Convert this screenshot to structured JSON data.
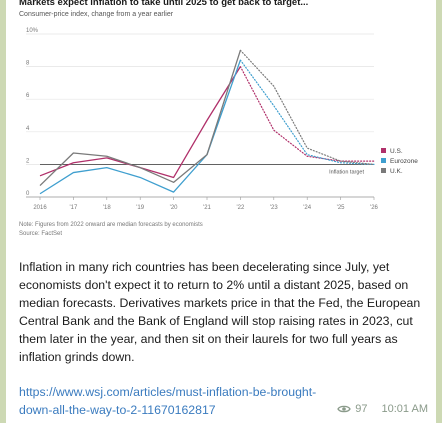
{
  "message": {
    "body": "Inflation in many rich countries has been decelerating since July, yet economists don't expect it to return to 2% until a distant 2025, based on median forecasts. Derivatives markets price in that the Fed, the European Central Bank and the Bank of England will stop raising rates in 2023, cut them later in the year, and then sit on their laurels for two full years as inflation grinds down.",
    "link": "https://www.wsj.com/articles/must-inflation-be-brought-down-all-the-way-to-2-11670162817",
    "views": "97",
    "time": "10:01 AM"
  },
  "chart_data": {
    "type": "line",
    "title": "Markets expect inflation to take until 2025 to get back to target...",
    "subtitle": "Consumer-price index, change from a year earlier",
    "note": "Note: Figures from 2022 onward are median forecasts by economists",
    "source": "Source: FactSet",
    "x": [
      2016,
      2017,
      2018,
      2019,
      2020,
      2021,
      2022,
      2023,
      2024,
      2025,
      2026
    ],
    "xticks": [
      "2016",
      "'17",
      "'18",
      "'19",
      "'20",
      "'21",
      "'22",
      "'23",
      "'24",
      "'25",
      "'26"
    ],
    "yticks": [
      "0",
      "2",
      "4",
      "6",
      "8",
      "10%"
    ],
    "ylim": [
      0,
      10
    ],
    "target": 2,
    "target_label": "Inflation target",
    "forecast_start": 2022,
    "series": [
      {
        "name": "U.S.",
        "color": "#b0306a",
        "values": [
          1.3,
          2.1,
          2.4,
          1.8,
          1.2,
          4.7,
          8.0,
          4.1,
          2.5,
          2.2,
          2.2
        ]
      },
      {
        "name": "Eurozone",
        "color": "#3f9fcf",
        "values": [
          0.2,
          1.5,
          1.8,
          1.2,
          0.3,
          2.6,
          8.4,
          5.6,
          2.6,
          2.1,
          2.0
        ]
      },
      {
        "name": "U.K.",
        "color": "#7a7a7a",
        "values": [
          0.7,
          2.7,
          2.5,
          1.8,
          0.9,
          2.6,
          9.0,
          6.8,
          3.0,
          2.2,
          2.0
        ]
      }
    ],
    "legend_position": "right"
  }
}
